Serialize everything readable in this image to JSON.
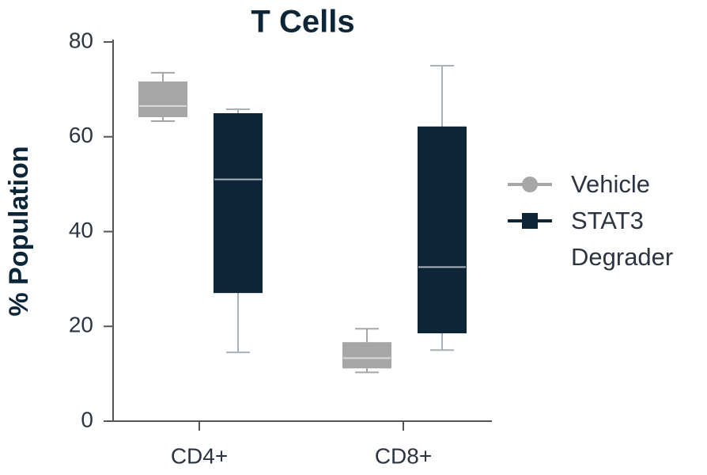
{
  "chart_data": {
    "type": "box",
    "title": "T Cells",
    "y_label": "% Population",
    "categories": [
      "CD4+",
      "CD8+"
    ],
    "series": [
      {
        "name": "Vehicle",
        "color": "#a6a6a6",
        "low": [
          63.3,
          10.3
        ],
        "q1": [
          64.3,
          11.3
        ],
        "median": [
          66.5,
          13.3
        ],
        "q3": [
          71.5,
          16.5
        ],
        "high": [
          73.5,
          19.5
        ]
      },
      {
        "name": "STAT3 Degrader",
        "color": "#0c2638",
        "low": [
          14.5,
          15
        ],
        "q1": [
          27.2,
          18.7
        ],
        "median": [
          51,
          32.5
        ],
        "q3": [
          64.8,
          62
        ],
        "high": [
          65.8,
          75
        ]
      }
    ],
    "ylim": [
      0,
      80
    ],
    "yticks": [
      0,
      20,
      40,
      60,
      80
    ],
    "grid": false
  }
}
